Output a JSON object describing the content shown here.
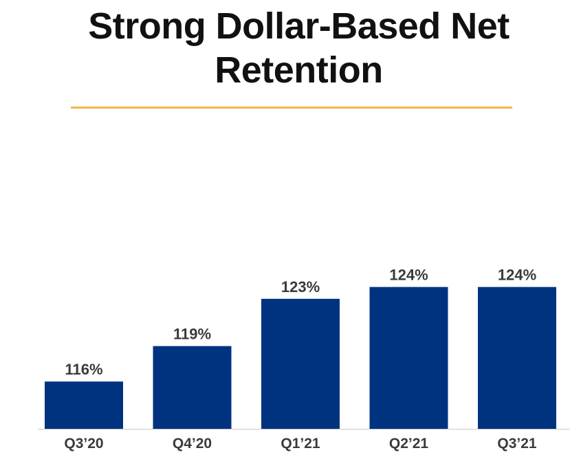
{
  "title_line1": "Strong Dollar-Based Net",
  "title_line2": "Retention",
  "colors": {
    "bar": "#00337f",
    "rule": "#f2b64a",
    "axis": "#c8c8c8"
  },
  "chart_data": {
    "type": "bar",
    "title": "Strong Dollar-Based Net Retention",
    "categories": [
      "Q3’20",
      "Q4’20",
      "Q1’21",
      "Q2’21",
      "Q3’21"
    ],
    "values": [
      116,
      119,
      123,
      124,
      124
    ],
    "data_labels": [
      "116%",
      "119%",
      "123%",
      "124%",
      "124%"
    ],
    "xlabel": "",
    "ylabel": "",
    "grid": false,
    "legend": "none"
  }
}
